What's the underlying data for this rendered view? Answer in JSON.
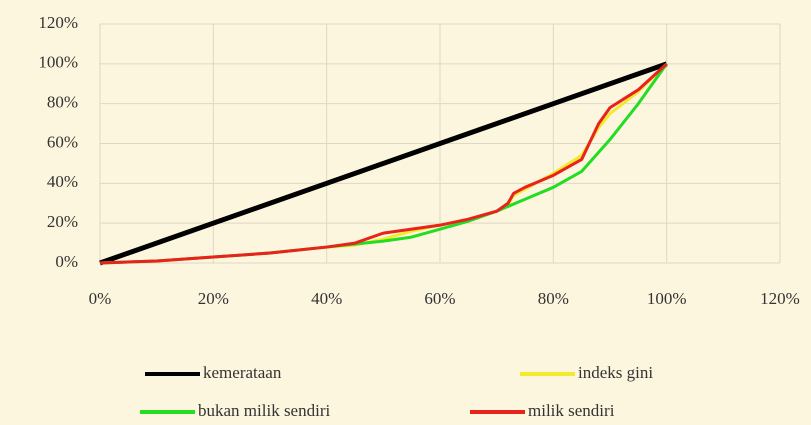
{
  "chart_data": {
    "type": "line",
    "xlim": [
      0,
      120
    ],
    "ylim": [
      0,
      120
    ],
    "xticks": [
      {
        "value": 0,
        "label": "0%"
      },
      {
        "value": 20,
        "label": "20%"
      },
      {
        "value": 40,
        "label": "40%"
      },
      {
        "value": 60,
        "label": "60%"
      },
      {
        "value": 80,
        "label": "80%"
      },
      {
        "value": 100,
        "label": "100%"
      },
      {
        "value": 120,
        "label": "120%"
      }
    ],
    "yticks": [
      {
        "value": 0,
        "label": "0%"
      },
      {
        "value": 20,
        "label": "20%"
      },
      {
        "value": 40,
        "label": "40%"
      },
      {
        "value": 60,
        "label": "60%"
      },
      {
        "value": 80,
        "label": "80%"
      },
      {
        "value": 100,
        "label": "100%"
      },
      {
        "value": 120,
        "label": "120%"
      }
    ],
    "grid": true,
    "legend": "bottom",
    "series": [
      {
        "name": "kemerataan",
        "color": "#000000",
        "x": [
          0,
          100
        ],
        "values": [
          0,
          100
        ]
      },
      {
        "name": "indeks gini",
        "color": "#f2ea2a",
        "x": [
          0,
          10,
          20,
          30,
          40,
          45,
          50,
          55,
          60,
          65,
          70,
          72,
          73,
          75,
          80,
          85,
          88,
          90,
          95,
          100
        ],
        "values": [
          0,
          1,
          3,
          5,
          8,
          9,
          12,
          16,
          19,
          22,
          26,
          29,
          34,
          37,
          45,
          54,
          68,
          75,
          86,
          100
        ]
      },
      {
        "name": "bukan milik sendiri",
        "color": "#22dd22",
        "x": [
          0,
          10,
          20,
          30,
          40,
          50,
          55,
          60,
          65,
          70,
          75,
          80,
          85,
          90,
          95,
          100
        ],
        "values": [
          0,
          1,
          3,
          5,
          8,
          11,
          13,
          17,
          21,
          26,
          32,
          38,
          46,
          62,
          80,
          100
        ]
      },
      {
        "name": "milik sendiri",
        "color": "#e8221c",
        "x": [
          0,
          10,
          20,
          30,
          40,
          45,
          50,
          55,
          60,
          65,
          70,
          72,
          73,
          75,
          80,
          85,
          88,
          90,
          95,
          100
        ],
        "values": [
          0,
          1,
          3,
          5,
          8,
          10,
          15,
          17,
          19,
          22,
          26,
          30,
          35,
          38,
          44,
          52,
          70,
          78,
          87,
          100
        ]
      }
    ]
  }
}
